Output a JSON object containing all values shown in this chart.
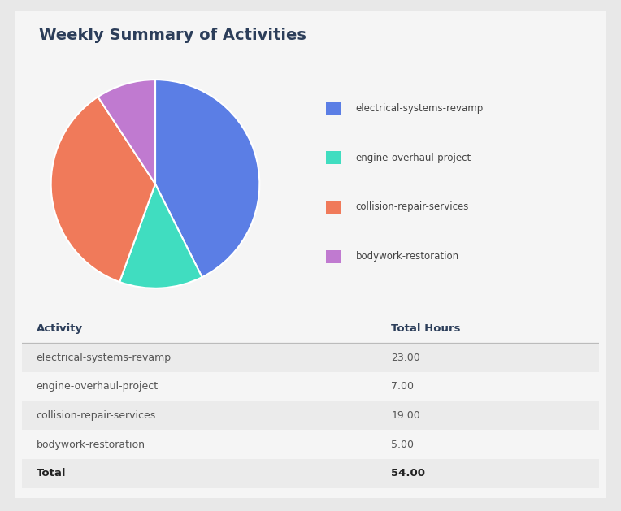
{
  "title": "Weekly Summary of Activities",
  "activities": [
    "electrical-systems-revamp",
    "engine-overhaul-project",
    "collision-repair-services",
    "bodywork-restoration"
  ],
  "hours": [
    23.0,
    7.0,
    19.0,
    5.0
  ],
  "total": 54.0,
  "colors": [
    "#5b7ee5",
    "#40ddc0",
    "#f07a5a",
    "#c07ad0"
  ],
  "bg_color": "#e8e8e8",
  "card_color": "#f5f5f5",
  "title_color": "#2c3e5a",
  "table_header_color": "#2c3e5a",
  "table_row_odd_color": "#ebebeb",
  "table_row_even_color": "#f5f5f5",
  "table_text_color": "#555555",
  "table_bold_color": "#222222",
  "legend_text_color": "#444444"
}
